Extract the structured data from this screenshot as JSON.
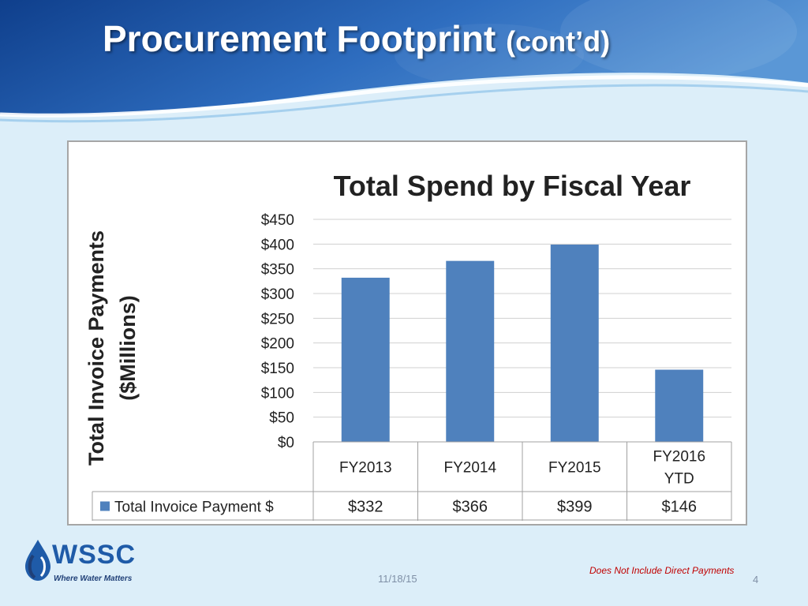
{
  "slide": {
    "title": "Procurement Footprint",
    "title_suffix": "(cont’d)",
    "footer_note": "Does Not Include Direct Payments",
    "date": "11/18/15",
    "page_number": "4"
  },
  "logo": {
    "name": "WSSC",
    "tagline": "Where Water Matters"
  },
  "colors": {
    "bar": "#4f81bd",
    "grid": "#d0d0d0",
    "banner_dark": "#0f3f8c",
    "banner_light": "#3d7cc9"
  },
  "chart_data": {
    "type": "bar",
    "title": "Total Spend by Fiscal Year",
    "ylabel_lines": [
      "Total Invoice Payments",
      "($Millions)"
    ],
    "categories": [
      [
        "FY2013"
      ],
      [
        "FY2014"
      ],
      [
        "FY2015"
      ],
      [
        "FY2016",
        "YTD"
      ]
    ],
    "series": [
      {
        "name": "Total Invoice Payment $",
        "values": [
          332,
          366,
          399,
          146
        ],
        "labels": [
          "$332",
          "$366",
          "$399",
          "$146"
        ]
      }
    ],
    "ylim": [
      0,
      450
    ],
    "yticks": [
      0,
      50,
      100,
      150,
      200,
      250,
      300,
      350,
      400,
      450
    ],
    "ytick_labels": [
      "$0",
      "$50",
      "$100",
      "$150",
      "$200",
      "$250",
      "$300",
      "$350",
      "$400",
      "$450"
    ],
    "grid": true,
    "data_table": true
  }
}
